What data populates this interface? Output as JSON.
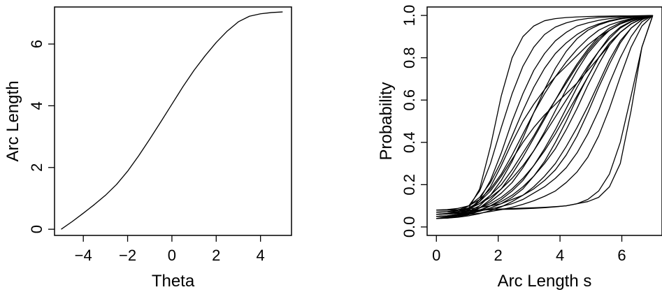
{
  "chart_data": [
    {
      "type": "line",
      "title": "",
      "xlabel": "Theta",
      "ylabel": "Arc Length",
      "xlim": [
        -5.3,
        5.4
      ],
      "ylim": [
        -0.2,
        7.2
      ],
      "xticks": [
        -4,
        -2,
        0,
        2,
        4
      ],
      "yticks": [
        0,
        2,
        4,
        6
      ],
      "grid": false,
      "series": [
        {
          "x": [
            -5,
            -4.5,
            -4,
            -3.5,
            -3,
            -2.5,
            -2,
            -1.5,
            -1,
            -0.5,
            0,
            0.5,
            1,
            1.5,
            2,
            2.5,
            3,
            3.5,
            4,
            4.5,
            5
          ],
          "y": [
            0,
            0.25,
            0.52,
            0.8,
            1.1,
            1.45,
            1.88,
            2.38,
            2.92,
            3.48,
            4.05,
            4.62,
            5.15,
            5.62,
            6.05,
            6.42,
            6.72,
            6.9,
            6.98,
            7.02,
            7.04
          ]
        }
      ]
    },
    {
      "type": "line",
      "title": "",
      "xlabel": "Arc Length s",
      "ylabel": "Probability",
      "xlim": [
        -0.3,
        7.3
      ],
      "ylim": [
        -0.04,
        1.04
      ],
      "xticks": [
        0,
        2,
        4,
        6
      ],
      "yticks": [
        0.0,
        0.2,
        0.4,
        0.6,
        0.8,
        1.0
      ],
      "grid": false,
      "x": [
        0,
        0.35,
        0.7,
        1.05,
        1.4,
        1.75,
        2.1,
        2.45,
        2.8,
        3.15,
        3.5,
        3.85,
        4.2,
        4.55,
        4.9,
        5.25,
        5.6,
        5.95,
        6.3,
        6.65,
        7
      ],
      "series": [
        {
          "y": [
            0.05,
            0.052,
            0.06,
            0.09,
            0.18,
            0.38,
            0.62,
            0.8,
            0.9,
            0.95,
            0.975,
            0.985,
            0.99,
            0.993,
            0.995,
            0.996,
            0.997,
            0.998,
            0.998,
            0.999,
            1.0
          ]
        },
        {
          "y": [
            0.06,
            0.062,
            0.07,
            0.1,
            0.17,
            0.3,
            0.47,
            0.63,
            0.76,
            0.85,
            0.91,
            0.945,
            0.965,
            0.978,
            0.986,
            0.99,
            0.993,
            0.995,
            0.997,
            0.998,
            1.0
          ]
        },
        {
          "y": [
            0.04,
            0.045,
            0.055,
            0.08,
            0.13,
            0.22,
            0.35,
            0.5,
            0.63,
            0.74,
            0.82,
            0.88,
            0.92,
            0.95,
            0.965,
            0.977,
            0.985,
            0.99,
            0.994,
            0.997,
            1.0
          ]
        },
        {
          "y": [
            0.07,
            0.072,
            0.08,
            0.1,
            0.14,
            0.21,
            0.31,
            0.43,
            0.55,
            0.66,
            0.75,
            0.82,
            0.87,
            0.91,
            0.94,
            0.96,
            0.975,
            0.985,
            0.99,
            0.995,
            1.0
          ]
        },
        {
          "y": [
            0.05,
            0.053,
            0.06,
            0.075,
            0.1,
            0.15,
            0.22,
            0.31,
            0.42,
            0.54,
            0.65,
            0.75,
            0.83,
            0.89,
            0.93,
            0.955,
            0.972,
            0.983,
            0.99,
            0.995,
            1.0
          ]
        },
        {
          "y": [
            0.08,
            0.082,
            0.088,
            0.1,
            0.13,
            0.18,
            0.25,
            0.34,
            0.44,
            0.54,
            0.63,
            0.71,
            0.78,
            0.84,
            0.89,
            0.93,
            0.955,
            0.972,
            0.985,
            0.993,
            1.0
          ]
        },
        {
          "y": [
            0.04,
            0.044,
            0.05,
            0.065,
            0.09,
            0.13,
            0.18,
            0.25,
            0.33,
            0.42,
            0.51,
            0.6,
            0.69,
            0.77,
            0.84,
            0.9,
            0.94,
            0.966,
            0.982,
            0.992,
            1.0
          ]
        },
        {
          "y": [
            0.06,
            0.063,
            0.07,
            0.085,
            0.11,
            0.15,
            0.2,
            0.27,
            0.35,
            0.43,
            0.52,
            0.6,
            0.68,
            0.76,
            0.83,
            0.89,
            0.93,
            0.96,
            0.98,
            0.991,
            1.0
          ]
        },
        {
          "y": [
            0.05,
            0.052,
            0.058,
            0.07,
            0.09,
            0.12,
            0.16,
            0.21,
            0.28,
            0.36,
            0.45,
            0.55,
            0.65,
            0.74,
            0.82,
            0.88,
            0.93,
            0.96,
            0.978,
            0.99,
            1.0
          ]
        },
        {
          "y": [
            0.07,
            0.072,
            0.078,
            0.09,
            0.11,
            0.14,
            0.18,
            0.23,
            0.29,
            0.36,
            0.44,
            0.52,
            0.6,
            0.68,
            0.76,
            0.83,
            0.89,
            0.94,
            0.97,
            0.988,
            1.0
          ]
        },
        {
          "y": [
            0.04,
            0.042,
            0.048,
            0.058,
            0.075,
            0.1,
            0.13,
            0.17,
            0.22,
            0.29,
            0.37,
            0.46,
            0.56,
            0.66,
            0.75,
            0.83,
            0.9,
            0.945,
            0.972,
            0.988,
            1.0
          ]
        },
        {
          "y": [
            0.06,
            0.062,
            0.066,
            0.075,
            0.09,
            0.11,
            0.14,
            0.18,
            0.23,
            0.29,
            0.36,
            0.44,
            0.53,
            0.62,
            0.71,
            0.8,
            0.87,
            0.92,
            0.96,
            0.985,
            1.0
          ]
        },
        {
          "y": [
            0.05,
            0.052,
            0.057,
            0.066,
            0.08,
            0.1,
            0.12,
            0.15,
            0.19,
            0.24,
            0.3,
            0.37,
            0.46,
            0.56,
            0.67,
            0.77,
            0.86,
            0.92,
            0.96,
            0.985,
            1.0
          ]
        },
        {
          "y": [
            0.08,
            0.08,
            0.082,
            0.086,
            0.092,
            0.1,
            0.11,
            0.13,
            0.15,
            0.18,
            0.22,
            0.27,
            0.34,
            0.43,
            0.54,
            0.66,
            0.77,
            0.87,
            0.94,
            0.98,
            1.0
          ]
        },
        {
          "y": [
            0.04,
            0.042,
            0.046,
            0.053,
            0.063,
            0.077,
            0.095,
            0.12,
            0.15,
            0.19,
            0.24,
            0.3,
            0.38,
            0.47,
            0.57,
            0.68,
            0.79,
            0.88,
            0.94,
            0.98,
            1.0
          ]
        },
        {
          "y": [
            0.06,
            0.061,
            0.064,
            0.069,
            0.076,
            0.085,
            0.097,
            0.11,
            0.13,
            0.16,
            0.19,
            0.23,
            0.28,
            0.35,
            0.44,
            0.55,
            0.68,
            0.8,
            0.9,
            0.97,
            1.0
          ]
        },
        {
          "y": [
            0.05,
            0.051,
            0.054,
            0.059,
            0.065,
            0.073,
            0.082,
            0.093,
            0.107,
            0.124,
            0.145,
            0.17,
            0.21,
            0.26,
            0.33,
            0.43,
            0.56,
            0.71,
            0.85,
            0.95,
            1.0
          ]
        },
        {
          "y": [
            0.07,
            0.071,
            0.073,
            0.076,
            0.079,
            0.082,
            0.085,
            0.087,
            0.089,
            0.091,
            0.093,
            0.096,
            0.1,
            0.11,
            0.13,
            0.17,
            0.25,
            0.4,
            0.62,
            0.85,
            1.0
          ]
        },
        {
          "y": [
            0.04,
            0.048,
            0.06,
            0.08,
            0.12,
            0.19,
            0.29,
            0.4,
            0.5,
            0.58,
            0.65,
            0.71,
            0.76,
            0.81,
            0.86,
            0.9,
            0.93,
            0.96,
            0.98,
            0.99,
            1.0
          ]
        },
        {
          "y": [
            0.06,
            0.064,
            0.072,
            0.09,
            0.12,
            0.17,
            0.24,
            0.32,
            0.4,
            0.47,
            0.53,
            0.58,
            0.63,
            0.68,
            0.74,
            0.8,
            0.86,
            0.92,
            0.96,
            0.985,
            1.0
          ]
        },
        {
          "y": [
            0.05,
            0.052,
            0.056,
            0.063,
            0.074,
            0.09,
            0.11,
            0.14,
            0.18,
            0.24,
            0.31,
            0.4,
            0.5,
            0.61,
            0.71,
            0.8,
            0.87,
            0.92,
            0.96,
            0.985,
            1.0
          ]
        },
        {
          "y": [
            0.08,
            0.08,
            0.08,
            0.08,
            0.081,
            0.082,
            0.083,
            0.084,
            0.086,
            0.088,
            0.091,
            0.095,
            0.1,
            0.11,
            0.12,
            0.14,
            0.19,
            0.3,
            0.55,
            0.85,
            1.0
          ]
        }
      ]
    }
  ]
}
